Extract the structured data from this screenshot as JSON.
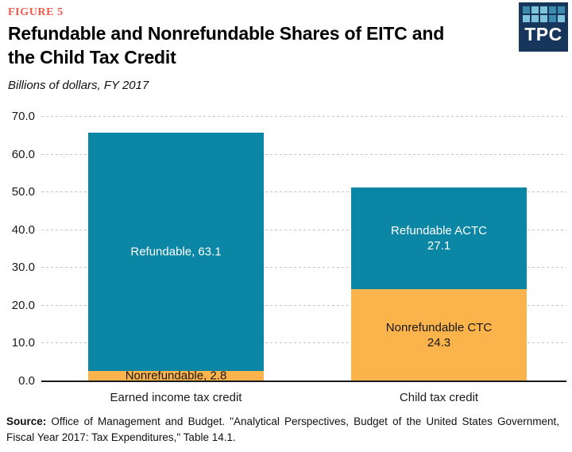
{
  "figure_label": "FIGURE 5",
  "title": {
    "line1": "Refundable and Nonrefundable Shares of EITC and",
    "line2": "the Child Tax Credit"
  },
  "subtitle": "Billions of dollars, FY 2017",
  "logo": {
    "text": "TPC",
    "bg": "#16365C",
    "square_colors": {
      "m": "#3C89AE",
      "l": "#7EC3DA"
    },
    "square_rows": [
      [
        "m",
        "l",
        "l",
        "m",
        "m"
      ],
      [
        "l",
        "l",
        "l",
        "m",
        "l"
      ]
    ]
  },
  "colors": {
    "teal": "#0B86A5",
    "orange": "#FBB34C",
    "figure_label": "#F2594B",
    "gridline": "#C4C4C4",
    "axis": "#1A1A1A",
    "label_light": "#FFFFFF",
    "label_dark": "#161616"
  },
  "chart_data": {
    "type": "bar",
    "stacked": true,
    "title": "Refundable and Nonrefundable Shares of EITC and the Child Tax Credit",
    "subtitle": "Billions of dollars, FY 2017",
    "categories": [
      "Earned income tax credit",
      "Child tax credit"
    ],
    "series": [
      {
        "name": "Nonrefundable",
        "color_key": "orange",
        "values": [
          2.8,
          24.3
        ]
      },
      {
        "name": "Refundable",
        "color_key": "teal",
        "values": [
          63.1,
          27.1
        ]
      }
    ],
    "segment_labels": [
      [
        {
          "lines": [
            "Nonrefundable, 2.8"
          ],
          "text_color": "dark"
        },
        {
          "lines": [
            "Refundable, 63.1"
          ],
          "text_color": "light"
        }
      ],
      [
        {
          "lines": [
            "Nonrefundable CTC",
            "24.3"
          ],
          "text_color": "dark"
        },
        {
          "lines": [
            "Refundable ACTC",
            "27.1"
          ],
          "text_color": "light"
        }
      ]
    ],
    "ylim": [
      0,
      70
    ],
    "ytick_step": 10,
    "ytick_decimals": 1,
    "grid": "horizontal dashed",
    "legend": "none (labels inside bar segments)"
  },
  "source": {
    "label": "Source:",
    "text": " Office of Management and Budget. \"Analytical Perspectives, Budget of the United States Government, Fiscal Year 2017: Tax Expenditures,\" Table 14.1."
  }
}
